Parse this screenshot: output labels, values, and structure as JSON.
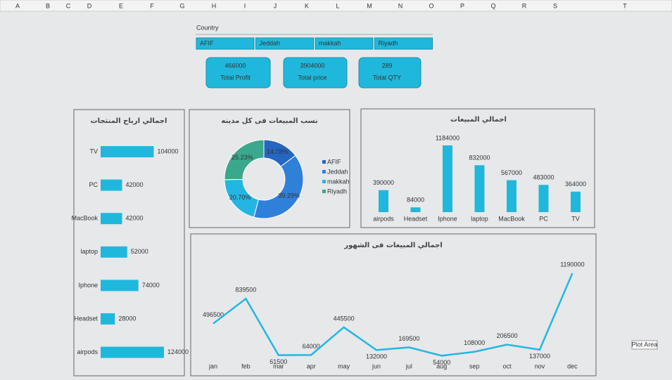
{
  "columns": [
    "A",
    "B",
    "C",
    "D",
    "E",
    "F",
    "G",
    "H",
    "I",
    "J",
    "K",
    "L",
    "M",
    "N",
    "O",
    "P",
    "Q",
    "R",
    "S",
    "T"
  ],
  "slicer": {
    "title": "Country",
    "items": [
      "AFIF",
      "Jeddah",
      "makkah",
      "Riyadh"
    ]
  },
  "kpis": [
    {
      "value": "466000",
      "label": "Total Profit"
    },
    {
      "value": "3904000",
      "label": "Total price"
    },
    {
      "value": "289",
      "label": "Total QTY"
    }
  ],
  "tooltip": "Plot Area",
  "chart_data": [
    {
      "type": "hbar",
      "title": "اجمالي ارباح المنتجات",
      "categories": [
        "TV",
        "PC",
        "MacBook",
        "laptop",
        "Iphone",
        "Headset",
        "airpods"
      ],
      "values": [
        104000,
        42000,
        42000,
        52000,
        74000,
        28000,
        124000
      ],
      "color": "#1fb8dc"
    },
    {
      "type": "donut",
      "title": "نسب المبيعات فى كل مدينه",
      "categories": [
        "AFIF",
        "Jeddah",
        "makkah",
        "Riyadh"
      ],
      "values": [
        14.78,
        39.29,
        20.7,
        25.23
      ],
      "value_labels": [
        "14.78%",
        "39.29%",
        "20.70%",
        "25.23%"
      ],
      "colors": [
        "#2466c2",
        "#2f80d8",
        "#24b6e2",
        "#3aa88c"
      ],
      "legend": "right"
    },
    {
      "type": "bar",
      "title": "اجمالي المبيعات",
      "categories": [
        "airpods",
        "Headset",
        "Iphone",
        "laptop",
        "MacBook",
        "PC",
        "TV"
      ],
      "values": [
        390000,
        84000,
        1184000,
        832000,
        567000,
        483000,
        364000
      ],
      "color": "#1fb8dc"
    },
    {
      "type": "line",
      "title": "اجمالي المبيعات فى الشهور",
      "categories": [
        "jan",
        "feb",
        "mar",
        "apr",
        "may",
        "jun",
        "jul",
        "aug",
        "sep",
        "oct",
        "nov",
        "dec"
      ],
      "values": [
        496500,
        839500,
        61500,
        64000,
        445500,
        132000,
        169500,
        54000,
        108000,
        206500,
        137000,
        1190000
      ],
      "color": "#24b6e2"
    }
  ]
}
